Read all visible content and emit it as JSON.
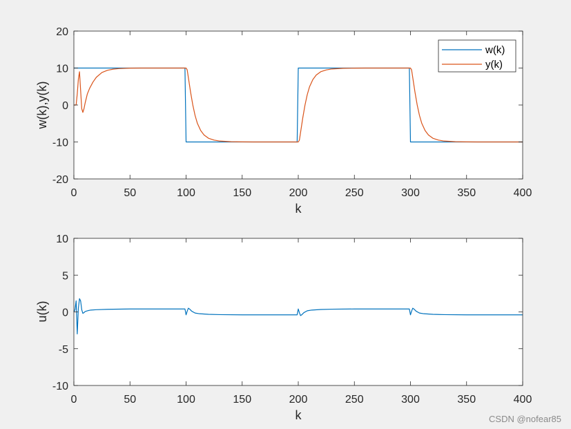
{
  "chart_data": [
    {
      "type": "line",
      "xlabel": "k",
      "ylabel": "w(k),y(k)",
      "xlim": [
        0,
        400
      ],
      "ylim": [
        -20,
        20
      ],
      "xticks": [
        0,
        50,
        100,
        150,
        200,
        250,
        300,
        350,
        400
      ],
      "yticks": [
        -20,
        -10,
        0,
        10,
        20
      ],
      "grid": false,
      "legend_position": "top-right",
      "series": [
        {
          "name": "w(k)",
          "color": "#0072BD",
          "x": [
            0,
            1,
            99,
            100,
            199,
            200,
            299,
            300,
            400
          ],
          "y": [
            10,
            10,
            10,
            -10,
            -10,
            10,
            10,
            -10,
            -10
          ]
        },
        {
          "name": "y(k)",
          "color": "#D95319",
          "x": [
            0,
            2,
            3,
            4,
            5,
            6,
            7,
            8,
            9,
            10,
            12,
            14,
            17,
            20,
            25,
            30,
            35,
            40,
            50,
            60,
            100,
            101,
            102,
            104,
            106,
            108,
            110,
            113,
            116,
            120,
            125,
            130,
            140,
            150,
            160,
            200,
            201,
            202,
            204,
            206,
            208,
            210,
            213,
            216,
            220,
            225,
            230,
            240,
            250,
            260,
            300,
            301,
            302,
            304,
            306,
            308,
            310,
            313,
            316,
            320,
            325,
            330,
            340,
            350,
            360,
            400
          ],
          "y": [
            0,
            0,
            3,
            7,
            9,
            4,
            -1,
            -2,
            -1,
            0.5,
            3,
            4.5,
            6.2,
            7.5,
            8.8,
            9.4,
            9.7,
            9.85,
            9.97,
            10,
            10,
            9.5,
            7.5,
            3.5,
            0,
            -2.8,
            -4.9,
            -6.9,
            -8.1,
            -9,
            -9.5,
            -9.75,
            -9.93,
            -9.98,
            -10,
            -10,
            -9.5,
            -7.5,
            -3.5,
            0,
            2.8,
            4.9,
            6.9,
            8.1,
            9,
            9.5,
            9.75,
            9.93,
            9.98,
            10,
            10,
            9.5,
            7.5,
            3.5,
            0,
            -2.8,
            -4.9,
            -6.9,
            -8.1,
            -9,
            -9.5,
            -9.75,
            -9.93,
            -9.98,
            -10,
            -10
          ]
        }
      ]
    },
    {
      "type": "line",
      "xlabel": "k",
      "ylabel": "u(k)",
      "xlim": [
        0,
        400
      ],
      "ylim": [
        -10,
        10
      ],
      "xticks": [
        0,
        50,
        100,
        150,
        200,
        250,
        300,
        350,
        400
      ],
      "yticks": [
        -10,
        -5,
        0,
        5,
        10
      ],
      "grid": false,
      "series": [
        {
          "color": "#0072BD",
          "x": [
            0,
            1,
            2,
            3,
            4,
            5,
            6,
            7,
            8,
            9,
            10,
            12,
            15,
            20,
            30,
            50,
            99,
            100,
            101,
            102,
            103,
            105,
            108,
            112,
            120,
            130,
            150,
            199,
            200,
            201,
            202,
            203,
            205,
            208,
            212,
            220,
            230,
            250,
            299,
            300,
            301,
            302,
            303,
            305,
            308,
            312,
            320,
            330,
            350,
            400
          ],
          "y": [
            0,
            0.3,
            1.5,
            -3,
            0.5,
            1.8,
            1.5,
            0.3,
            -0.2,
            -0.1,
            0.05,
            0.15,
            0.25,
            0.3,
            0.35,
            0.4,
            0.4,
            -0.4,
            0.1,
            0.5,
            0.4,
            0.1,
            -0.15,
            -0.25,
            -0.33,
            -0.37,
            -0.4,
            -0.4,
            0.4,
            -0.1,
            -0.5,
            -0.4,
            -0.1,
            0.15,
            0.25,
            0.33,
            0.37,
            0.4,
            0.4,
            -0.4,
            0.1,
            0.5,
            0.4,
            0.1,
            -0.15,
            -0.25,
            -0.33,
            -0.37,
            -0.4,
            -0.4
          ]
        }
      ]
    }
  ],
  "watermark": "CSDN @nofear85"
}
